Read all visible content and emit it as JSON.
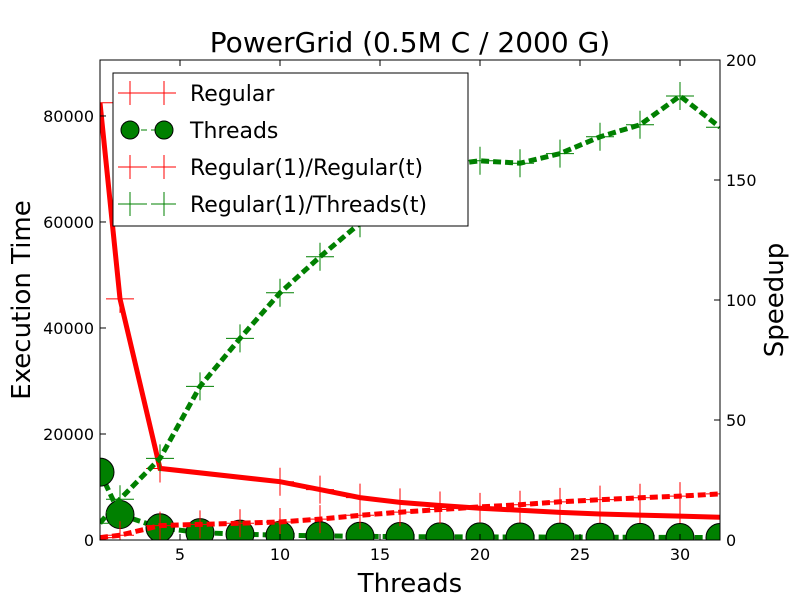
{
  "chart_data": {
    "type": "line",
    "title": "PowerGrid (0.5M C / 2000 G)",
    "xlabel": "Threads",
    "ylabel": "Execution Time",
    "y2label": "Speedup",
    "xlim": [
      1,
      32
    ],
    "ylim": [
      0,
      90560
    ],
    "y2lim": [
      0,
      200
    ],
    "xticks": [
      5,
      10,
      15,
      20,
      25,
      30
    ],
    "yticks": [
      0,
      20000,
      40000,
      60000,
      80000
    ],
    "y2ticks": [
      0,
      50,
      100,
      150,
      200
    ],
    "grid": false,
    "legend_position": "upper-left",
    "series": [
      {
        "name": "Regular",
        "axis": "left",
        "color": "#ff0000",
        "style": "solid",
        "marker": "plus",
        "x": [
          1,
          2,
          4,
          10,
          12,
          14,
          16,
          18,
          20,
          22,
          24,
          26,
          28,
          30,
          32
        ],
        "values": [
          82500,
          45500,
          13500,
          11000,
          9500,
          8000,
          7100,
          6500,
          6000,
          5600,
          5200,
          4900,
          4700,
          4500,
          4300
        ]
      },
      {
        "name": "Threads",
        "axis": "left",
        "color": "#008000",
        "style": "dashed",
        "marker": "circle",
        "x": [
          1,
          2,
          4,
          6,
          8,
          10,
          12,
          14,
          16,
          18,
          20,
          22,
          24,
          26,
          28,
          30,
          32
        ],
        "values": [
          12800,
          4800,
          2300,
          1400,
          1100,
          900,
          800,
          700,
          650,
          600,
          580,
          560,
          540,
          520,
          500,
          480,
          460
        ]
      },
      {
        "name": "Regular(1)/Regular(t)",
        "axis": "right",
        "color": "#ff0000",
        "style": "dashed",
        "marker": "plus",
        "x": [
          1,
          2,
          4,
          6,
          8,
          10,
          12,
          14,
          16,
          18,
          20,
          22,
          24,
          26,
          28,
          30,
          32
        ],
        "values": [
          1,
          2,
          6,
          6.5,
          7,
          7.5,
          8.7,
          10.3,
          11.6,
          12.7,
          13.8,
          14.7,
          15.9,
          16.8,
          17.6,
          18.3,
          19.2
        ]
      },
      {
        "name": "Regular(1)/Threads(t)",
        "axis": "right",
        "color": "#008000",
        "style": "dashed",
        "marker": "plus",
        "x": [
          1,
          2,
          4,
          6,
          8,
          10,
          12,
          14,
          16,
          18,
          20,
          22,
          24,
          26,
          28,
          30,
          32
        ],
        "values": [
          7,
          17,
          34,
          64,
          84,
          103,
          118,
          132,
          143,
          156,
          158,
          157,
          161,
          168,
          173,
          185,
          172
        ]
      }
    ]
  }
}
